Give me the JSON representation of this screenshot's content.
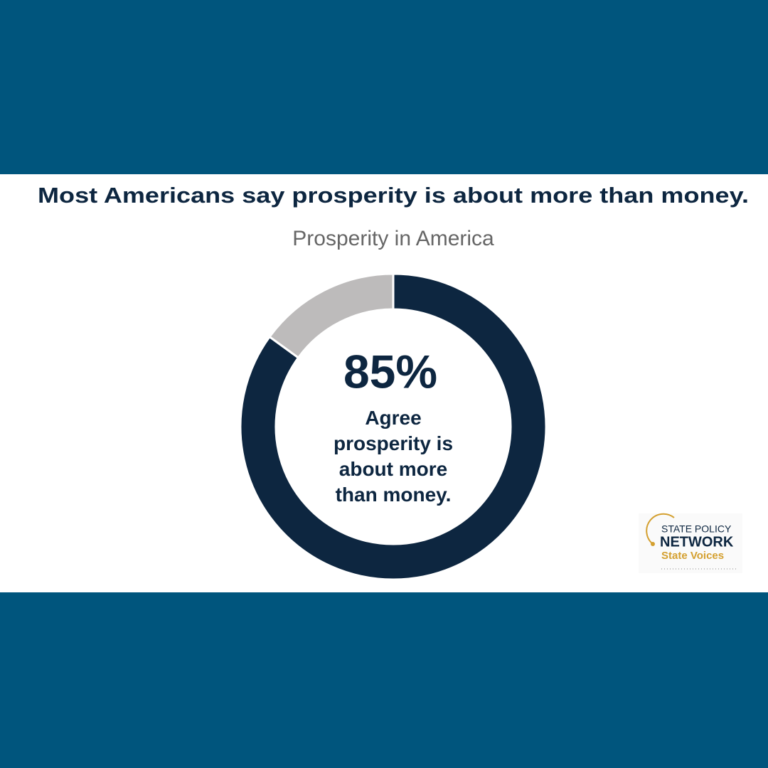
{
  "chart_data": {
    "type": "pie",
    "title": "Most Americans say prosperity is about more than money.",
    "subtitle": "Prosperity in America",
    "values": [
      85,
      15
    ],
    "value_labels": [
      "85%",
      null
    ],
    "colors": [
      "#0d2640",
      "#bdbbbb"
    ],
    "center_text": "Agree prosperity is about more than money.",
    "logo": {
      "line1": "STATE POLICY",
      "line2": "NETWORK",
      "line3": "State Voices"
    }
  }
}
